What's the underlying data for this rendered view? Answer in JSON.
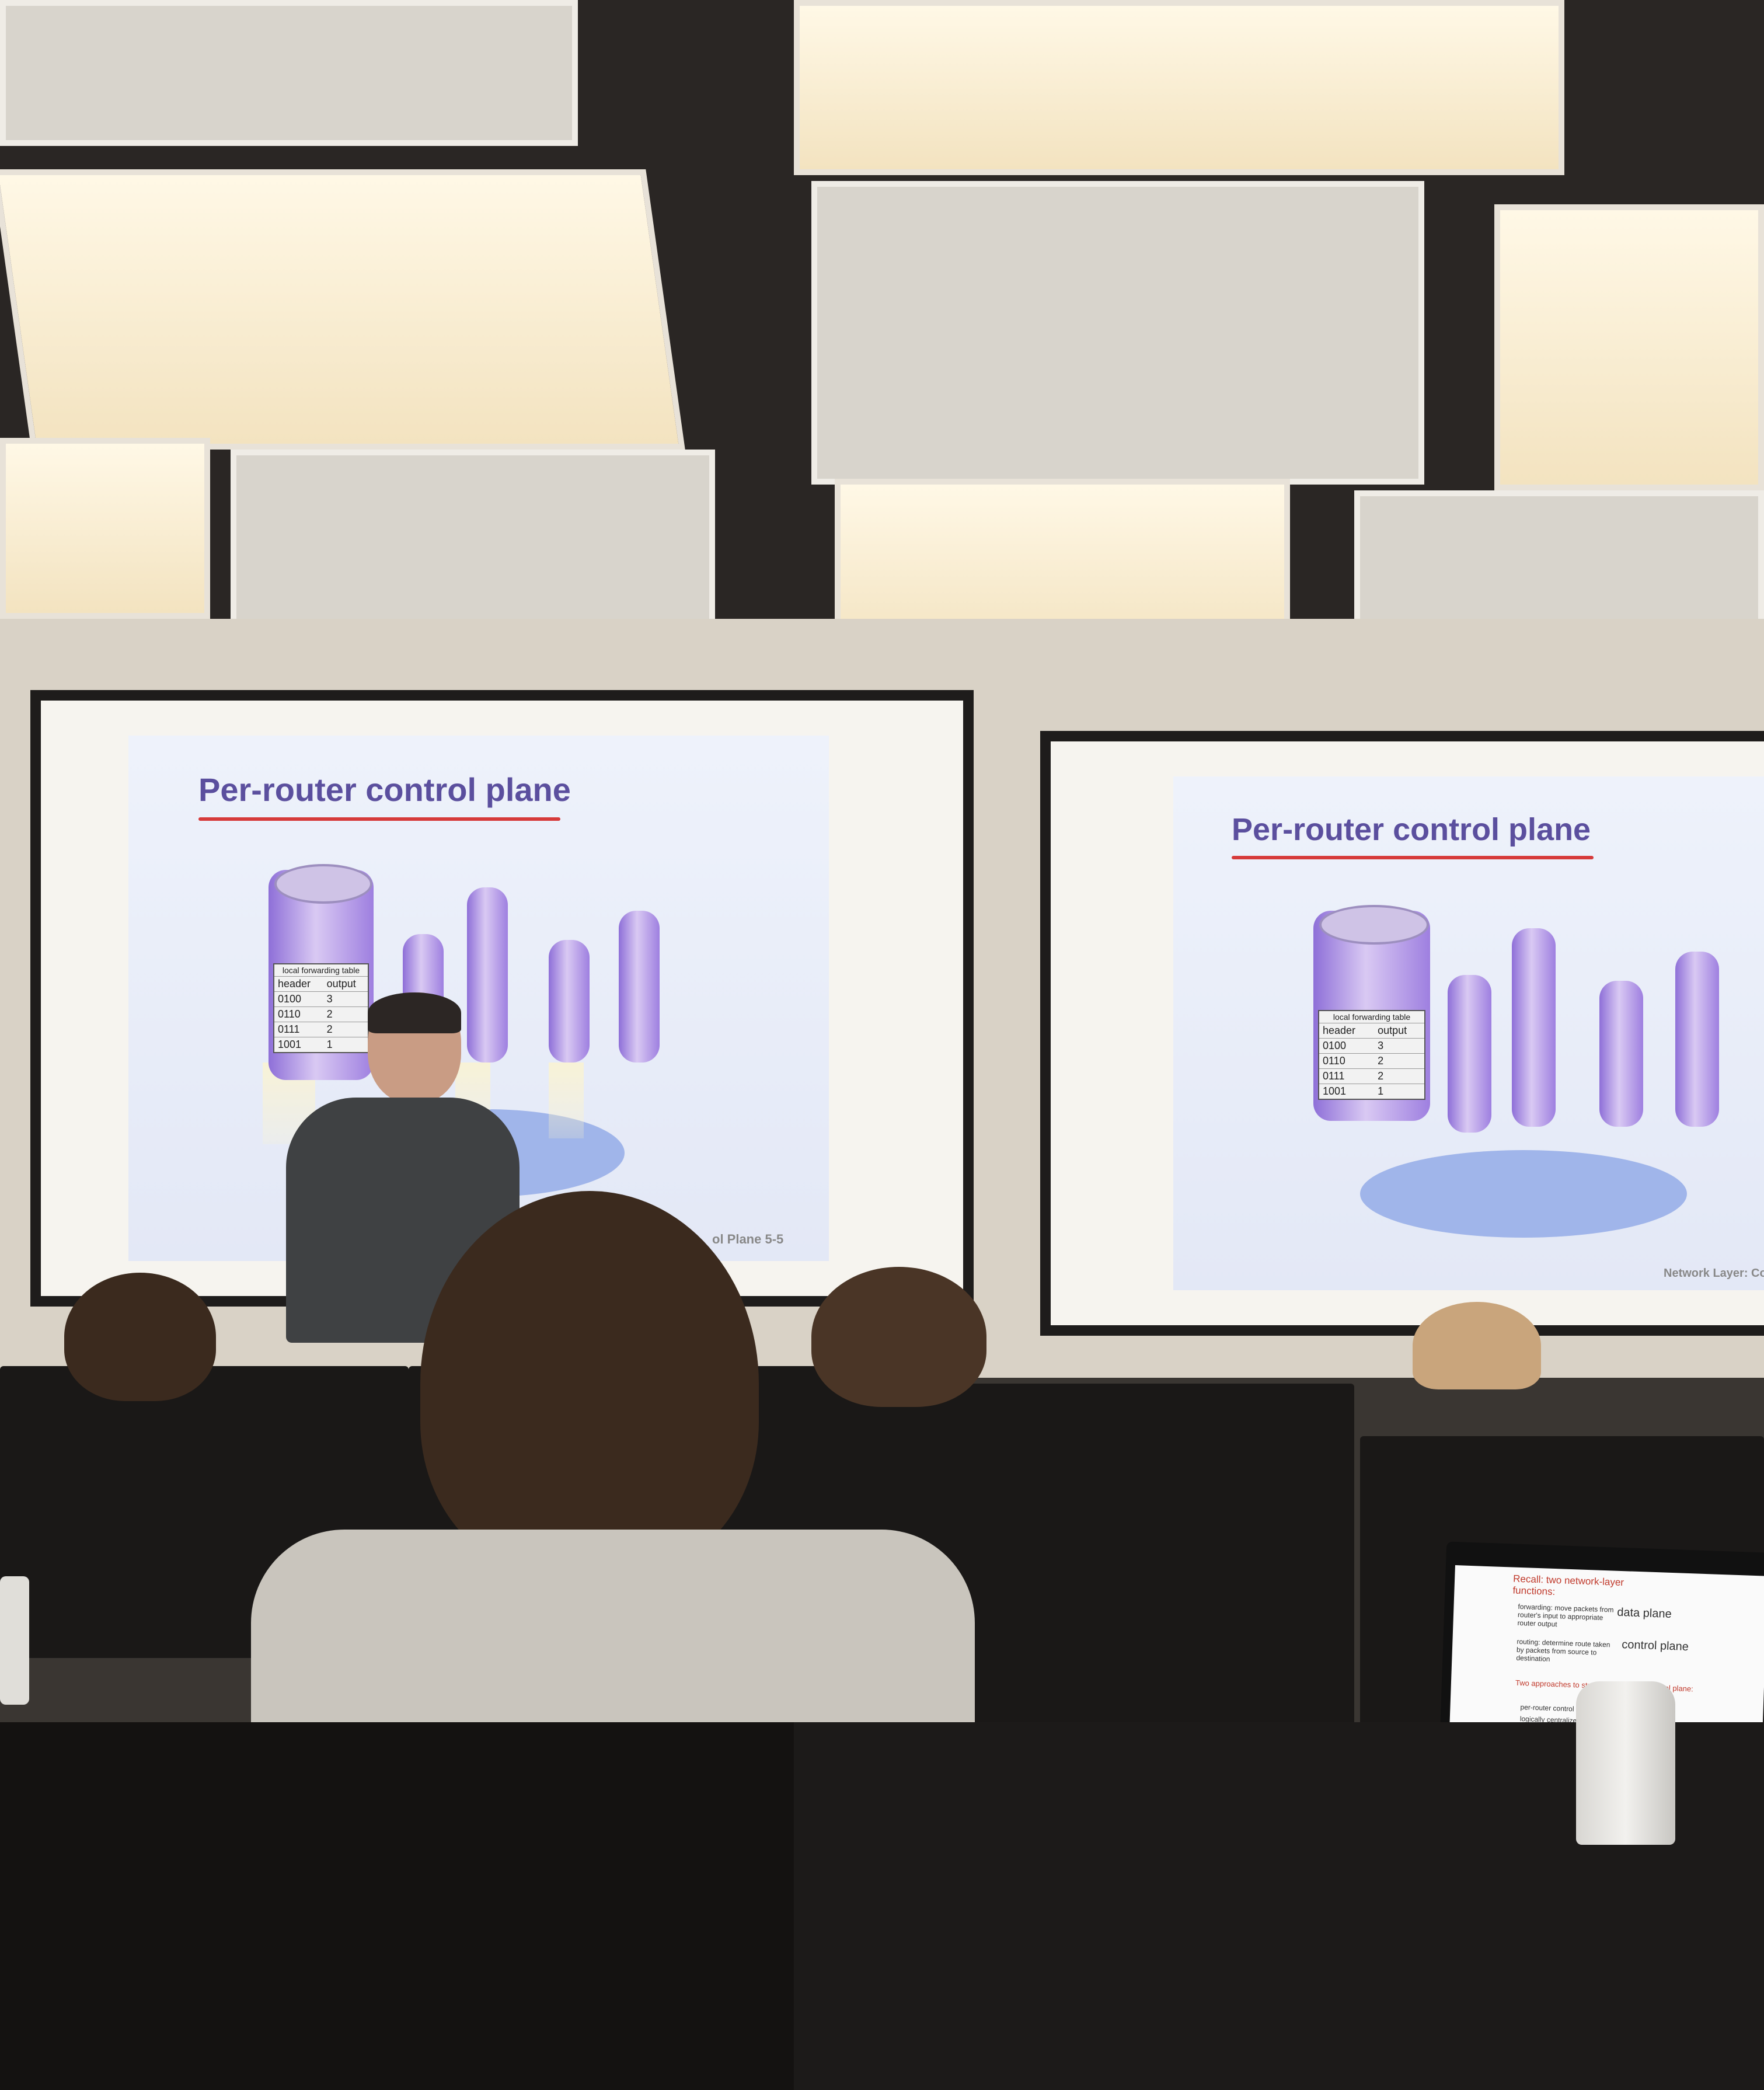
{
  "slides": {
    "left": {
      "title": "Per-router control plane",
      "table_caption": "local forwarding table",
      "table_headers": [
        "header",
        "output"
      ],
      "table_rows": [
        [
          "0100",
          "3"
        ],
        [
          "0110",
          "2"
        ],
        [
          "0111",
          "2"
        ],
        [
          "1001",
          "1"
        ]
      ],
      "footer": "ol Plane  5-5"
    },
    "right": {
      "title": "Per-router control plane",
      "table_caption": "local forwarding table",
      "table_headers": [
        "header",
        "output"
      ],
      "table_rows": [
        [
          "0100",
          "3"
        ],
        [
          "0110",
          "2"
        ],
        [
          "0111",
          "2"
        ],
        [
          "1001",
          "1"
        ]
      ],
      "footer": "Network Layer: Co"
    }
  },
  "laptop": {
    "heading": "Recall: two network-layer functions:",
    "bullet1": "forwarding: move packets from router's input to appropriate router output",
    "bullet2": "routing: determine route taken by packets from source to destination",
    "label_data": "data plane",
    "label_control": "control plane",
    "approaches": "Two approaches to structuring network control plane:",
    "approach1": "per-router control (traditional)",
    "approach2": "logically centralized control"
  },
  "colors": {
    "slide_title": "#5b4f9e",
    "underline": "#d63a3a",
    "router": "#9e7fe0"
  }
}
